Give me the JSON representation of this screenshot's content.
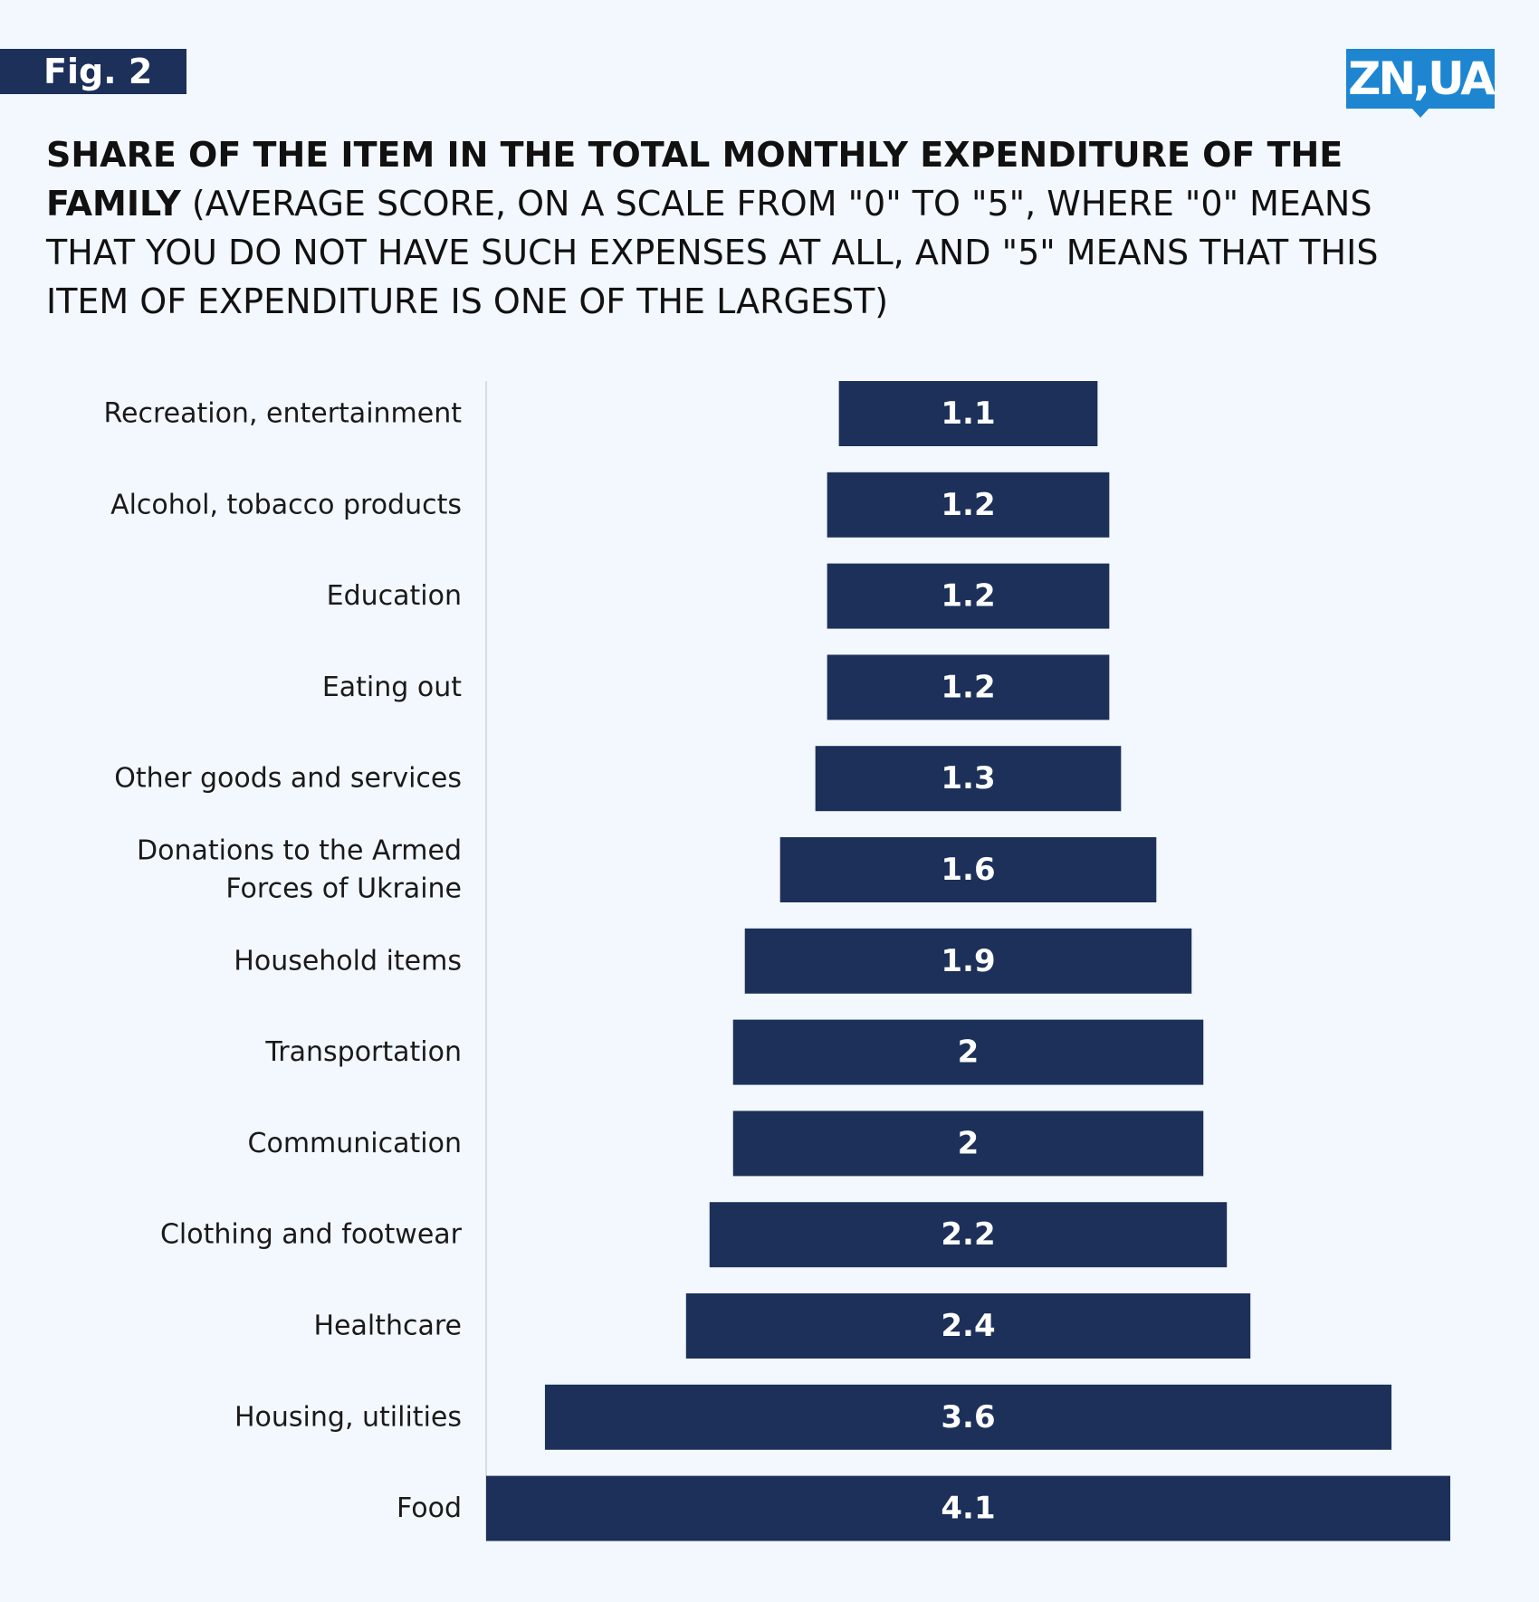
{
  "header": {
    "fig_label": "Fig. 2",
    "logo_text": "ZN,UA",
    "logo_color": "#1e86d1",
    "title_bold": "SHARE OF THE ITEM IN THE  TOTAL MONTHLY EXPENDITURE OF THE FAMILY",
    "title_regular": "(AVERAGE SCORE, ON A SCALE FROM \"0\" TO \"5\", WHERE \"0\" MEANS THAT YOU DO NOT HAVE SUCH EXPENSES AT ALL, AND \"5\" MEANS THAT THIS ITEM OF EXPENDITURE IS ONE OF THE LARGEST)"
  },
  "chart_data": {
    "type": "bar",
    "orientation": "horizontal",
    "alignment": "centered",
    "bar_color": "#1c3059",
    "categories": [
      "Recreation, entertainment",
      "Alcohol, tobacco products",
      "Education",
      "Eating out",
      "Other goods and services",
      "Donations to the Armed Forces of Ukraine",
      "Household items",
      "Transportation",
      "Communication",
      "Clothing and footwear",
      "Healthcare",
      "Housing, utilities",
      "Food"
    ],
    "category_lines": [
      [
        "Recreation, entertainment"
      ],
      [
        "Alcohol, tobacco products"
      ],
      [
        "Education"
      ],
      [
        "Eating out"
      ],
      [
        "Other goods and services"
      ],
      [
        "Donations to the Armed",
        "Forces of Ukraine"
      ],
      [
        "Household items"
      ],
      [
        "Transportation"
      ],
      [
        "Communication"
      ],
      [
        "Clothing and footwear"
      ],
      [
        "Healthcare"
      ],
      [
        "Housing, utilities"
      ],
      [
        "Food"
      ]
    ],
    "values": [
      1.1,
      1.2,
      1.2,
      1.2,
      1.3,
      1.6,
      1.9,
      2,
      2,
      2.2,
      2.4,
      3.6,
      4.1
    ],
    "value_labels": [
      "1.1",
      "1.2",
      "1.2",
      "1.2",
      "1.3",
      "1.6",
      "1.9",
      "2",
      "2",
      "2.2",
      "2.4",
      "3.6",
      "4.1"
    ],
    "xlim": [
      0,
      4.1
    ],
    "grid": false,
    "legend": "none"
  }
}
